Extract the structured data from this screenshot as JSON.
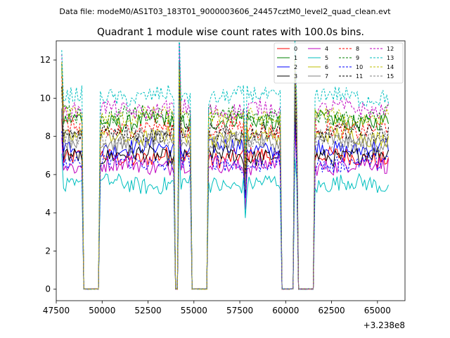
{
  "chart_data": {
    "type": "line",
    "suptitle": "Data file: modeM0/AS1T03_183T01_9000003606_24457cztM0_level2_quad_clean.evt",
    "title": "Quadrant 1 module wise count rates with 100.0s bins.",
    "xlabel": "",
    "ylabel": "",
    "x_offset_label": "+3.238e8",
    "xlim": [
      47500,
      66500
    ],
    "ylim": [
      -0.6,
      13.0
    ],
    "x_ticks": [
      47500,
      50000,
      52500,
      55000,
      57500,
      60000,
      62500,
      65000
    ],
    "x_tick_labels": [
      "47500",
      "50000",
      "52500",
      "55000",
      "57500",
      "60000",
      "62500",
      "65000"
    ],
    "y_ticks": [
      0,
      2,
      4,
      6,
      8,
      10,
      12
    ],
    "y_tick_labels": [
      "0",
      "2",
      "4",
      "6",
      "8",
      "10",
      "12"
    ],
    "legend_position": "top-right",
    "bin_width_s": 100,
    "time_range": [
      47800,
      65600
    ],
    "segments": [
      {
        "start": 47800,
        "end": 49000,
        "state": "on"
      },
      {
        "start": 49000,
        "end": 49900,
        "state": "gap"
      },
      {
        "start": 49900,
        "end": 54000,
        "state": "on"
      },
      {
        "start": 54000,
        "end": 54200,
        "state": "gap"
      },
      {
        "start": 54200,
        "end": 54900,
        "state": "on"
      },
      {
        "start": 54900,
        "end": 55800,
        "state": "gap"
      },
      {
        "start": 55800,
        "end": 59800,
        "state": "on"
      },
      {
        "start": 59800,
        "end": 60500,
        "state": "gap"
      },
      {
        "start": 60500,
        "end": 60700,
        "state": "on"
      },
      {
        "start": 60700,
        "end": 61600,
        "state": "gap"
      },
      {
        "start": 61600,
        "end": 65600,
        "state": "on"
      }
    ],
    "spikes": [
      {
        "time": 47800,
        "extra": 2.6
      },
      {
        "time": 54200,
        "extra": 2.8
      },
      {
        "time": 60500,
        "extra": 3.0
      },
      {
        "time": 59800,
        "extra": 2.0
      }
    ],
    "dips": [
      {
        "time": 57800,
        "depth": 2.3
      }
    ],
    "series": [
      {
        "name": "0",
        "color": "#ff0000",
        "dashed": false,
        "level": 6.9
      },
      {
        "name": "1",
        "color": "#008000",
        "dashed": false,
        "level": 8.8
      },
      {
        "name": "2",
        "color": "#0000ff",
        "dashed": false,
        "level": 7.4
      },
      {
        "name": "3",
        "color": "#000000",
        "dashed": false,
        "level": 7.0
      },
      {
        "name": "4",
        "color": "#bf00bf",
        "dashed": false,
        "level": 6.5
      },
      {
        "name": "5",
        "color": "#00bfbf",
        "dashed": false,
        "level": 5.5
      },
      {
        "name": "6",
        "color": "#bfbf00",
        "dashed": false,
        "level": 8.0
      },
      {
        "name": "7",
        "color": "#808080",
        "dashed": false,
        "level": 7.7
      },
      {
        "name": "8",
        "color": "#ff0000",
        "dashed": true,
        "level": 8.4
      },
      {
        "name": "9",
        "color": "#008000",
        "dashed": true,
        "level": 9.1
      },
      {
        "name": "10",
        "color": "#0000ff",
        "dashed": true,
        "level": 6.6
      },
      {
        "name": "11",
        "color": "#000000",
        "dashed": true,
        "level": 8.2
      },
      {
        "name": "12",
        "color": "#bf00bf",
        "dashed": true,
        "level": 9.4
      },
      {
        "name": "13",
        "color": "#00bfbf",
        "dashed": true,
        "level": 10.1
      },
      {
        "name": "14",
        "color": "#bfbf00",
        "dashed": true,
        "level": 9.0
      },
      {
        "name": "15",
        "color": "#808080",
        "dashed": true,
        "level": 7.9
      }
    ]
  }
}
